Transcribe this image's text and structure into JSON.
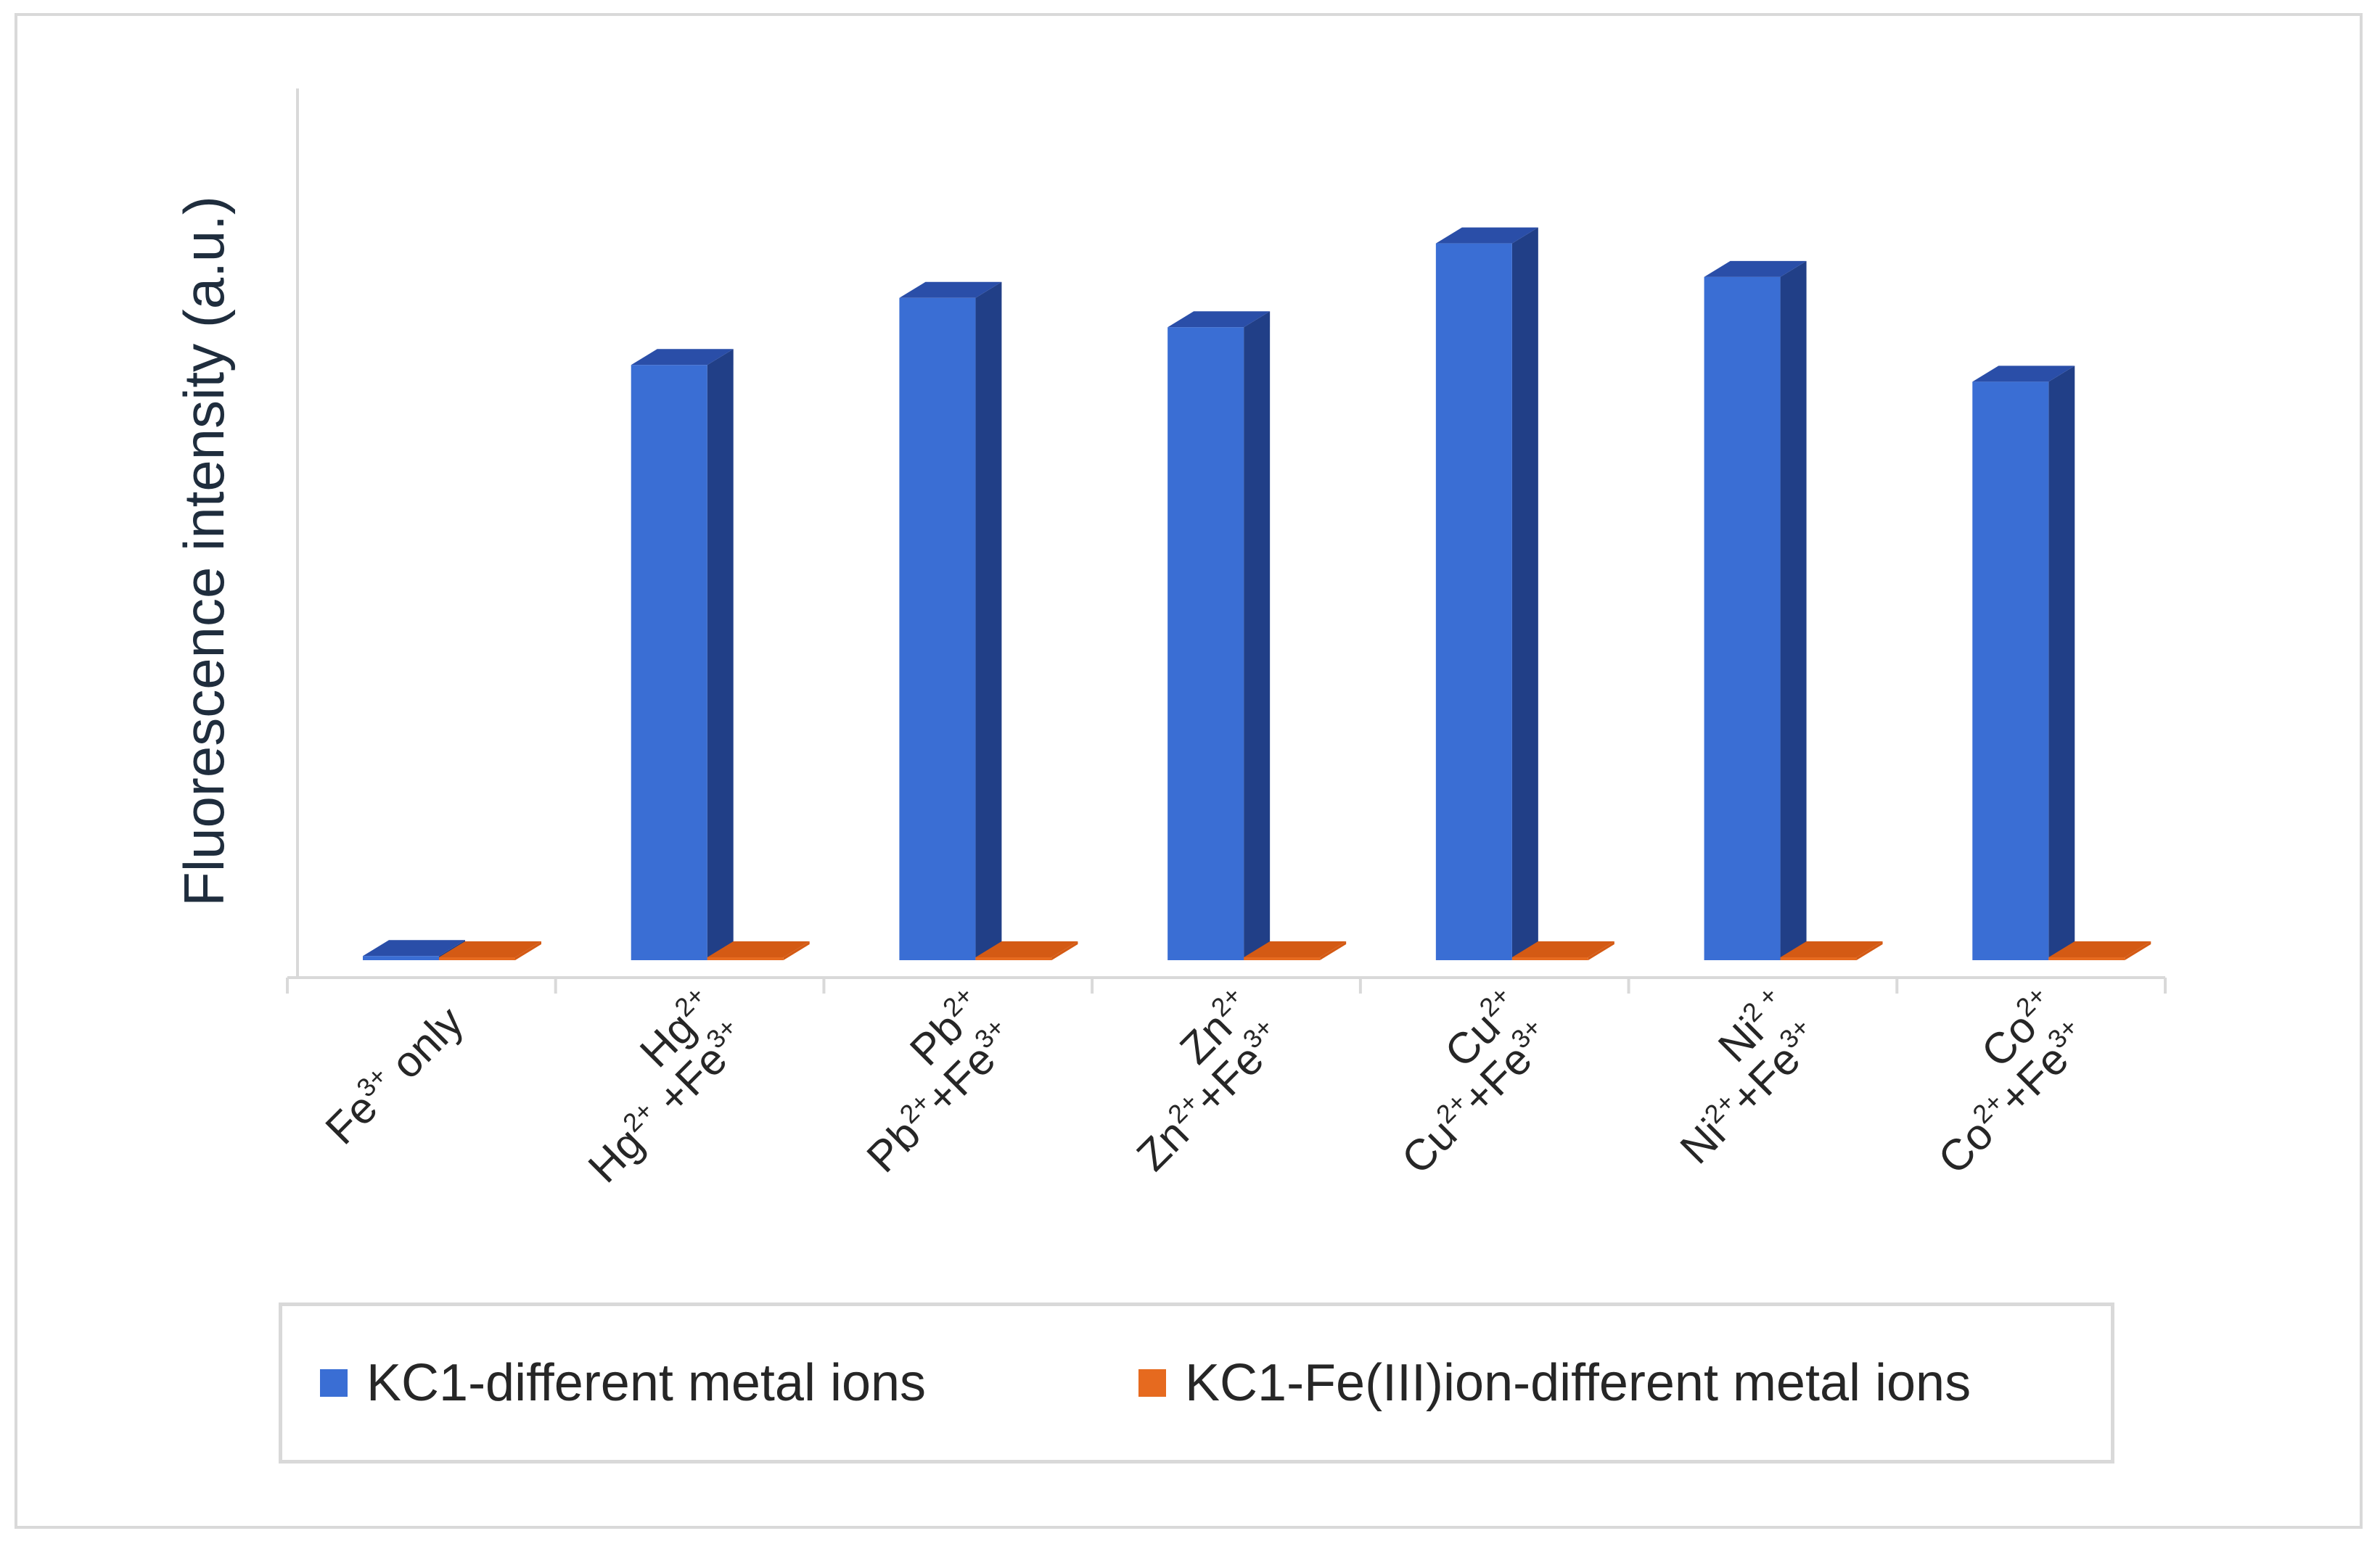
{
  "colors": {
    "series1_front": "#3a6ed4",
    "series1_side": "#213f87",
    "series1_top": "#2a4ea8",
    "series2_front": "#e66a1f",
    "series2_top": "#d45a14",
    "axis": "#d9d9d9"
  },
  "chart_data": {
    "type": "bar",
    "style": "3d-clustered-column",
    "ylabel": "Fluorescence intensity (a.u.)",
    "xlabel": "",
    "ylim": [
      0,
      100
    ],
    "grid": false,
    "legend_position": "bottom",
    "categories": [
      {
        "line1": {
          "base": "Fe",
          "sup": "3+",
          "rest": " only"
        }
      },
      {
        "line1": {
          "base": "Hg",
          "sup": "2+",
          "rest": ""
        },
        "line2": {
          "base": "Hg",
          "sup": "2+",
          "rest": " +Fe",
          "sup2": "3+"
        }
      },
      {
        "line1": {
          "base": "Pb",
          "sup": "2+",
          "rest": ""
        },
        "line2": {
          "base": "Pb",
          "sup": "2+",
          "rest": "+Fe",
          "sup2": "3+"
        }
      },
      {
        "line1": {
          "base": "Zn",
          "sup": "2+",
          "rest": ""
        },
        "line2": {
          "base": "Zn",
          "sup": "2+",
          "rest": "+Fe",
          "sup2": "3+"
        }
      },
      {
        "line1": {
          "base": "Cu",
          "sup": "2+",
          "rest": ""
        },
        "line2": {
          "base": "Cu",
          "sup": "2+",
          "rest": "+Fe",
          "sup2": "3+"
        }
      },
      {
        "line1": {
          "base": "Ni",
          "sup": "2 +",
          "rest": ""
        },
        "line2": {
          "base": "Ni",
          "sup": "2+",
          "rest": "+Fe",
          "sup2": "3+"
        }
      },
      {
        "line1": {
          "base": "Co",
          "sup": "2+",
          "rest": ""
        },
        "line2": {
          "base": "Co",
          "sup": "2+",
          "rest": "+Fe",
          "sup2": "3+"
        }
      }
    ],
    "series": [
      {
        "name": "KC1-different metal ions",
        "values": [
          0.5,
          71,
          79,
          75.5,
          85.5,
          81.5,
          69
        ]
      },
      {
        "name": "KC1-Fe(III)ion-different metal ions",
        "values": [
          0.3,
          0.3,
          0.3,
          0.3,
          0.3,
          0.3,
          0.3
        ]
      }
    ]
  },
  "legend": {
    "items": [
      {
        "label": "KC1-different metal ions"
      },
      {
        "label": "KC1-Fe(III)ion-different metal ions"
      }
    ]
  }
}
